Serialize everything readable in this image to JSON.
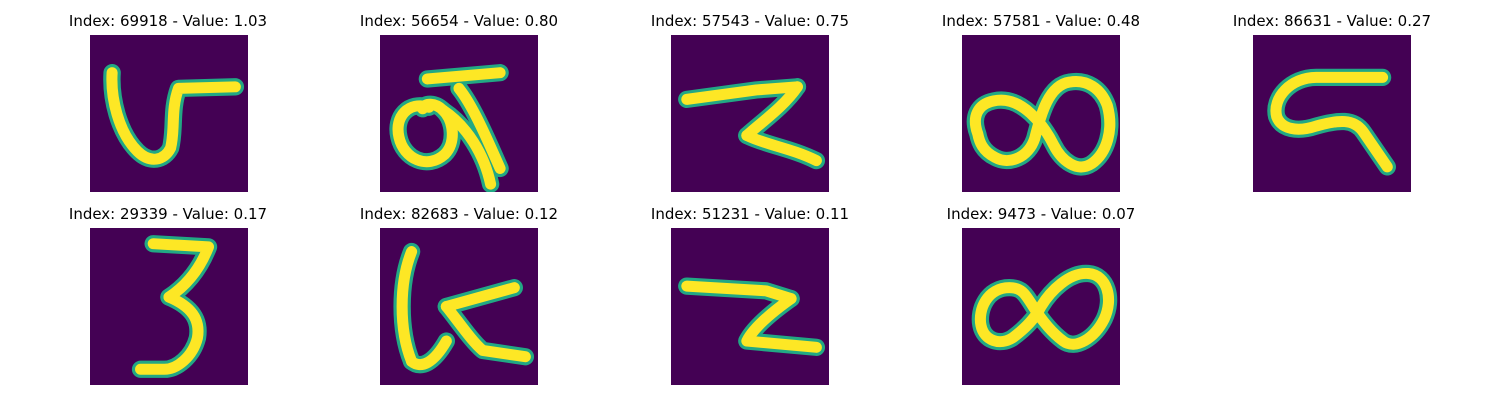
{
  "chart_data": {
    "type": "image_grid",
    "rows": 2,
    "columns": 5,
    "colormap": "viridis",
    "panels": [
      {
        "index": 69918,
        "value": 1.03,
        "title": "Index: 69918 - Value: 1.03",
        "glyph": "v-hook"
      },
      {
        "index": 56654,
        "value": 0.8,
        "title": "Index: 56654 - Value: 0.80",
        "glyph": "loop-with-tail"
      },
      {
        "index": 57543,
        "value": 0.75,
        "title": "Index: 57543 - Value: 0.75",
        "glyph": "z-stroke"
      },
      {
        "index": 57581,
        "value": 0.48,
        "title": "Index: 57581 - Value: 0.48",
        "glyph": "double-loop"
      },
      {
        "index": 86631,
        "value": 0.27,
        "title": "Index: 86631 - Value: 0.27",
        "glyph": "c-with-tail"
      },
      {
        "index": 29339,
        "value": 0.17,
        "title": "Index: 29339 - Value: 0.17",
        "glyph": "three"
      },
      {
        "index": 82683,
        "value": 0.12,
        "title": "Index: 82683 - Value: 0.12",
        "glyph": "hook-with-bar"
      },
      {
        "index": 51231,
        "value": 0.11,
        "title": "Index: 51231 - Value: 0.11",
        "glyph": "z-block"
      },
      {
        "index": 9473,
        "value": 0.07,
        "title": "Index: 9473 - Value: 0.07",
        "glyph": "infinity"
      }
    ],
    "colors": {
      "background": "#440154",
      "edge": "#22a884",
      "core": "#fde725"
    }
  }
}
